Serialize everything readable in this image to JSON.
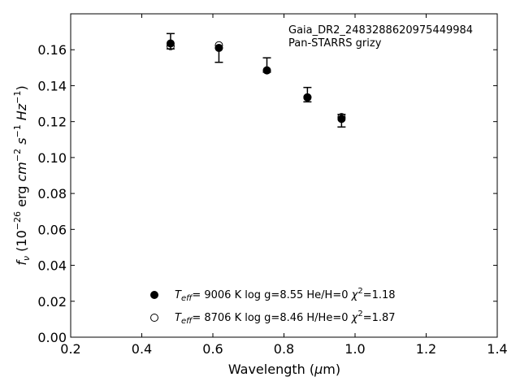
{
  "chart_data": {
    "type": "scatter",
    "title_lines": [
      "Gaia_DR2_2483288620975449984",
      "Pan-STARRS grizy"
    ],
    "xlabel": {
      "main": "Wavelength (",
      "greek": "μ",
      "end": "m)"
    },
    "ylabel": {
      "f": "f",
      "nu": "ν",
      "a": " (10",
      "e1": "−26",
      "b": " erg ",
      "cm": "cm",
      "e2": "−2",
      "s": " s",
      "e3": "−1",
      "hz": " Hz",
      "e4": "−1",
      "c": ")"
    },
    "xlim": [
      0.2,
      1.4
    ],
    "ylim": [
      0.0,
      0.18
    ],
    "xticks": [
      "0.2",
      "0.4",
      "0.6",
      "0.8",
      "1.0",
      "1.2",
      "1.4"
    ],
    "yticks": [
      "0.00",
      "0.02",
      "0.04",
      "0.06",
      "0.08",
      "0.10",
      "0.12",
      "0.14",
      "0.16"
    ],
    "observed": [
      {
        "x": 0.481,
        "y": 0.1635,
        "yerr_low": 0.1605,
        "yerr_high": 0.169
      },
      {
        "x": 0.617,
        "y": 0.161,
        "yerr_low": 0.153,
        "yerr_high": 0.161
      },
      {
        "x": 0.752,
        "y": 0.1485,
        "yerr_low": 0.1475,
        "yerr_high": 0.1555
      },
      {
        "x": 0.866,
        "y": 0.1335,
        "yerr_low": 0.131,
        "yerr_high": 0.139
      },
      {
        "x": 0.962,
        "y": 0.121,
        "yerr_low": 0.117,
        "yerr_high": 0.124
      }
    ],
    "series": [
      {
        "marker": "filled",
        "legend": {
          "T": "T",
          "sub": "eff",
          "text": "=  9006 K  log g=8.55  He/H=0  ",
          "chi": "χ",
          "sup": "2",
          "end": "=1.18"
        },
        "values": [
          {
            "x": 0.481,
            "y": 0.1635
          },
          {
            "x": 0.617,
            "y": 0.161
          },
          {
            "x": 0.752,
            "y": 0.1485
          },
          {
            "x": 0.866,
            "y": 0.1335
          },
          {
            "x": 0.962,
            "y": 0.1215
          }
        ]
      },
      {
        "marker": "open",
        "legend": {
          "T": "T",
          "sub": "eff",
          "text": "=  8706 K  log g=8.46  H/He=0  ",
          "chi": "χ",
          "sup": "2",
          "end": "=1.87"
        },
        "values": [
          {
            "x": 0.481,
            "y": 0.162
          },
          {
            "x": 0.617,
            "y": 0.1625
          },
          {
            "x": 0.752,
            "y": 0.1485
          },
          {
            "x": 0.866,
            "y": 0.1335
          },
          {
            "x": 0.962,
            "y": 0.1225
          }
        ]
      }
    ],
    "grid": false,
    "legend_position": "lower-center"
  }
}
